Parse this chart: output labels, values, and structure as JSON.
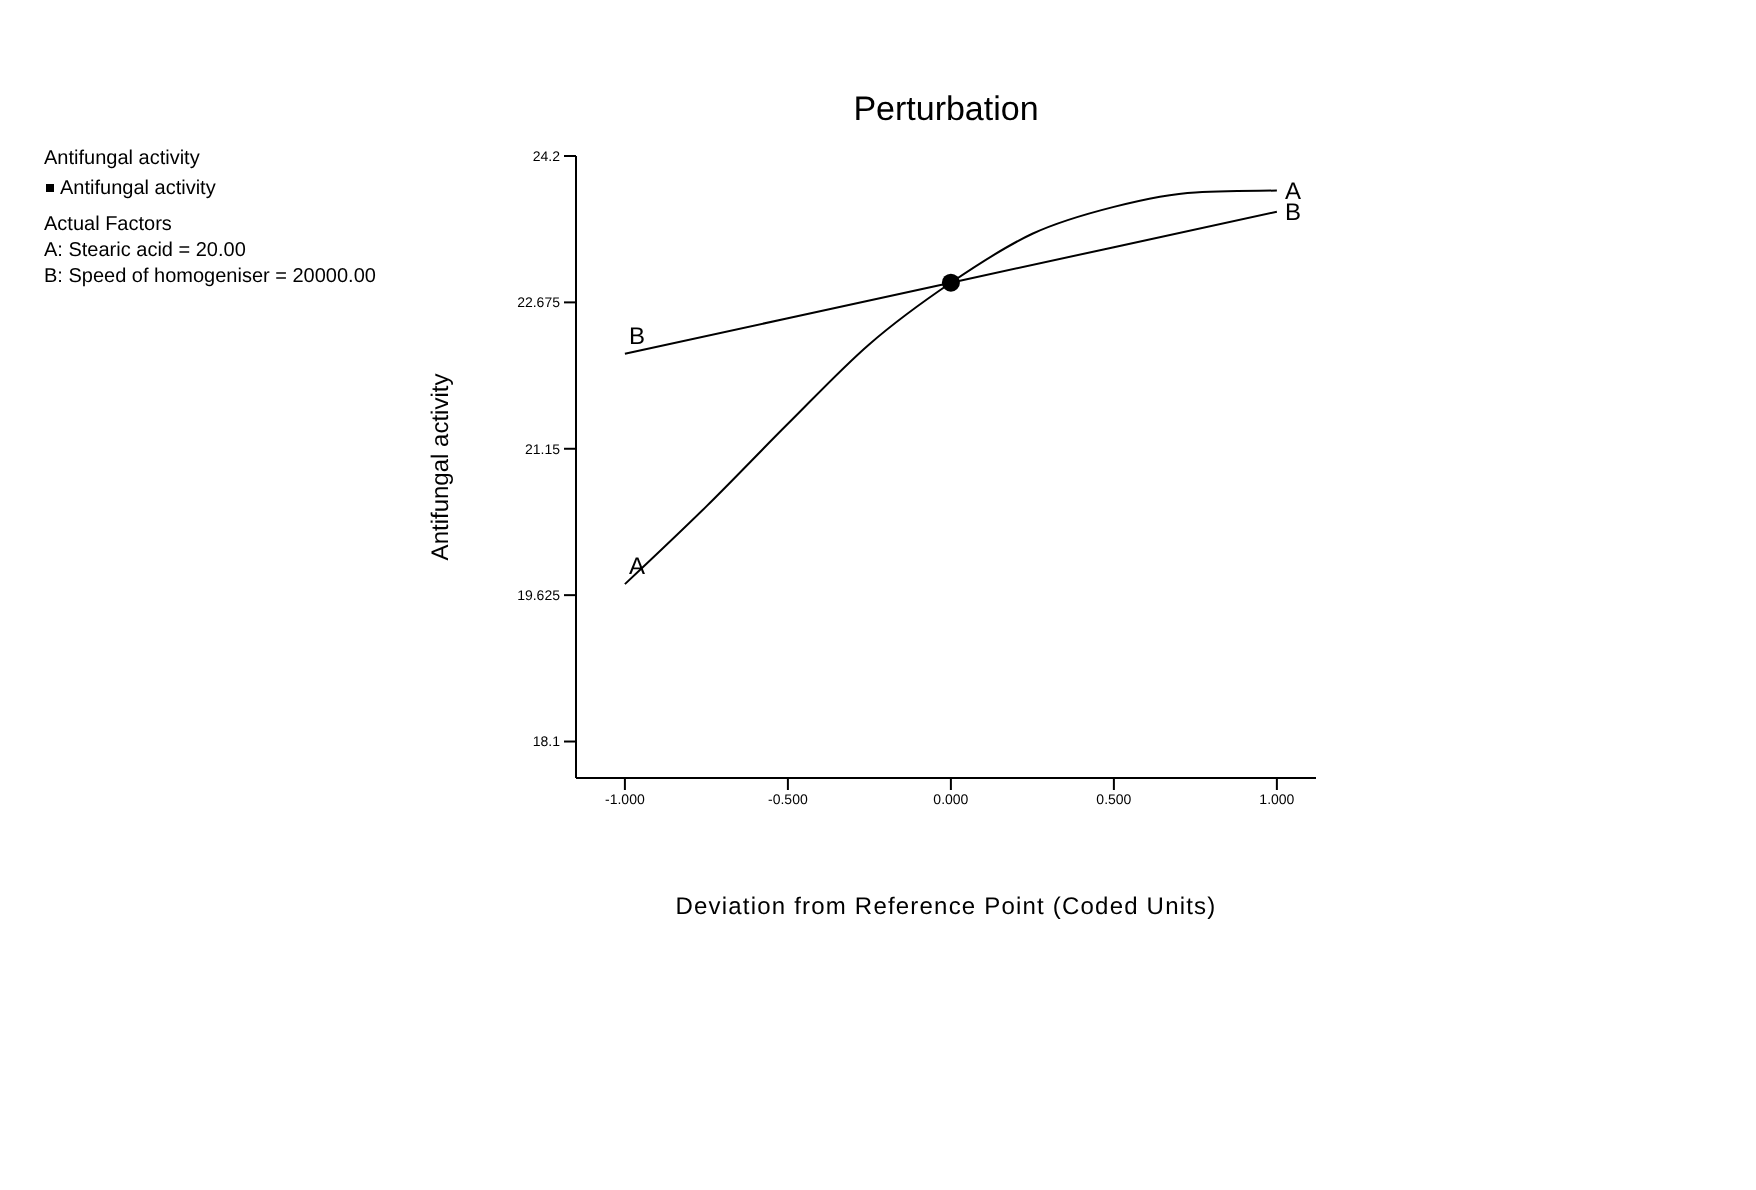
{
  "chart_data": {
    "type": "line",
    "title": "Perturbation",
    "xlabel": "Deviation from Reference Point (Coded Units)",
    "ylabel": "Antifungal activity",
    "annotations": [
      "Antifungal activity",
      "Antifungal activity",
      "Actual Factors",
      "A: Stearic acid = 20.00",
      "B: Speed of homogeniser = 20000.00"
    ],
    "x": [
      -1,
      -0.75,
      -0.5,
      -0.25,
      0,
      0.25,
      0.5,
      0.75,
      1
    ],
    "series": [
      {
        "name": "A",
        "color": "#000000",
        "values": [
          19.74,
          20.55,
          21.41,
          22.24,
          22.88,
          23.39,
          23.67,
          23.82,
          23.84
        ]
      },
      {
        "name": "B",
        "color": "#000000",
        "x": [
          -1,
          0,
          1
        ],
        "values": [
          22.14,
          22.88,
          23.62
        ]
      },
      {
        "type": "scatter",
        "marker": "circle",
        "color": "#000000",
        "x": [
          0
        ],
        "values": [
          22.88
        ]
      }
    ],
    "xlim": [
      -1.15,
      1.12
    ],
    "xticks": [
      {
        "value": -1,
        "label": "-1.000"
      },
      {
        "value": -0.5,
        "label": "-0.500"
      },
      {
        "value": 0,
        "label": "0.000"
      },
      {
        "value": 0.5,
        "label": "0.500"
      },
      {
        "value": 1,
        "label": "1.000"
      }
    ],
    "ylim": [
      17.72,
      24.2
    ],
    "yticks": [
      18.1,
      19.625,
      21.15,
      22.675,
      24.2
    ],
    "marker": "none",
    "line_style": "solid",
    "grid": false,
    "legend": false
  }
}
